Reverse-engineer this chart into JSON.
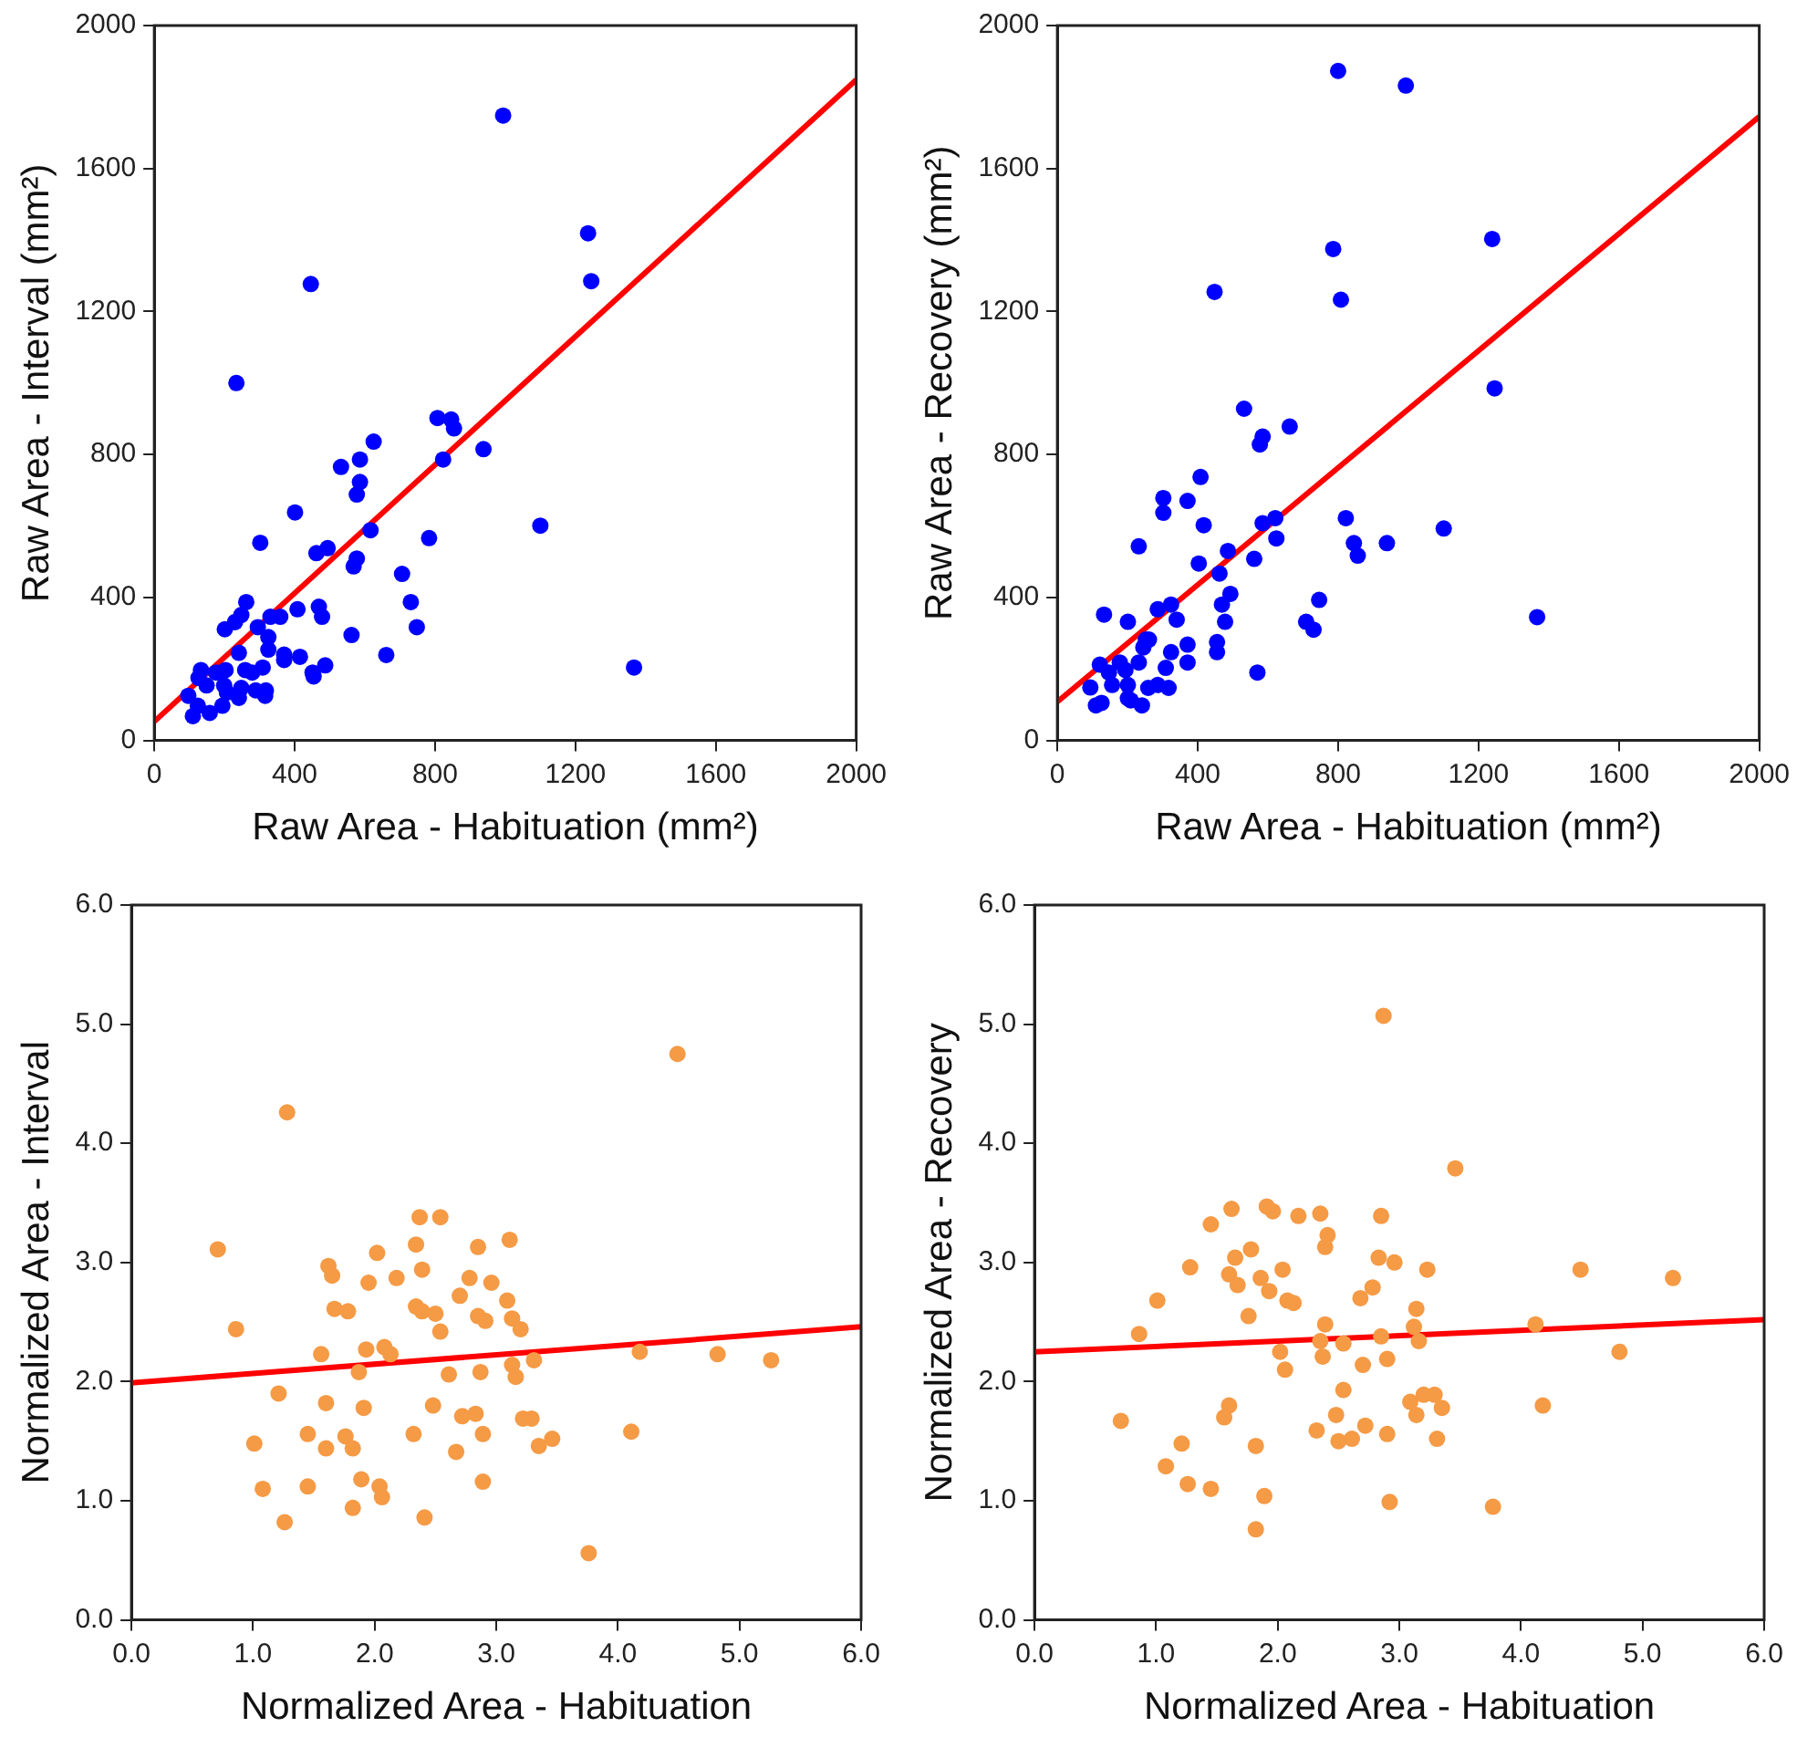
{
  "chart_data": [
    {
      "type": "scatter",
      "xlabel": "Raw Area - Habituation (mm²)",
      "ylabel": "Raw Area - Interval (mm²)",
      "xlim": [
        0,
        2000
      ],
      "ylim": [
        0,
        2000
      ],
      "xticks": [
        0,
        400,
        800,
        1200,
        1600,
        2000
      ],
      "yticks": [
        0,
        400,
        800,
        1200,
        1600,
        2000
      ],
      "marker": "circle",
      "grid": false,
      "series": [
        {
          "type": "scatter",
          "color": "#0000ff",
          "x": [
            994,
            1236,
            1245,
            446,
            234,
            807,
            846,
            854,
            625,
            938,
            586,
            823,
            532,
            586,
            577,
            401,
            616,
            1100,
            783,
            302,
            462,
            494,
            577,
            568,
            706,
            262,
            731,
            408,
            469,
            478,
            359,
            331,
            248,
            230,
            201,
            295,
            748,
            325,
            562,
            325,
            241,
            370,
            415,
            661,
            370,
            1367,
            487,
            451,
            454,
            259,
            279,
            309,
            133,
            126,
            176,
            203,
            149,
            199,
            248,
            207,
            289,
            318,
            316,
            241,
            97,
            124,
            194,
            158,
            110
          ],
          "values": [
            1748,
            1419,
            1285,
            1277,
            1000,
            902,
            898,
            873,
            836,
            815,
            786,
            786,
            765,
            723,
            688,
            638,
            588,
            601,
            566,
            553,
            524,
            538,
            509,
            487,
            466,
            387,
            387,
            367,
            374,
            346,
            346,
            346,
            351,
            331,
            311,
            317,
            317,
            289,
            295,
            254,
            245,
            240,
            234,
            239,
            225,
            204,
            210,
            190,
            179,
            197,
            190,
            204,
            197,
            175,
            190,
            197,
            154,
            154,
            147,
            134,
            140,
            140,
            125,
            119,
            125,
            97,
            97,
            77,
            68
          ]
        },
        {
          "type": "line",
          "color": "#ff0000",
          "marker": "none",
          "x": [
            0,
            2000
          ],
          "values": [
            53,
            1848
          ]
        }
      ]
    },
    {
      "type": "scatter",
      "xlabel": "Raw Area - Habituation (mm²)",
      "ylabel": "Raw Area - Recovery (mm²)",
      "xlim": [
        0,
        2000
      ],
      "ylim": [
        0,
        2000
      ],
      "xticks": [
        0,
        400,
        800,
        1200,
        1600,
        2000
      ],
      "yticks": [
        0,
        400,
        800,
        1200,
        1600,
        2000
      ],
      "marker": "circle",
      "grid": false,
      "series": [
        {
          "type": "scatter",
          "color": "#0000ff",
          "x": [
            800,
            993,
            1239,
            786,
            448,
            808,
            1246,
            532,
            662,
            585,
            577,
            408,
            302,
            302,
            371,
            417,
            822,
            1101,
            232,
            621,
            585,
            624,
            845,
            939,
            856,
            486,
            561,
            403,
            462,
            493,
            746,
            1367,
            469,
            286,
            324,
            133,
            201,
            340,
            478,
            709,
            730,
            252,
            261,
            245,
            371,
            455,
            455,
            178,
            232,
            371,
            324,
            309,
            570,
            121,
            147,
            194,
            156,
            201,
            94,
            286,
            259,
            317,
            201,
            209,
            110,
            126,
            241
          ],
          "values": [
            1873,
            1832,
            1403,
            1375,
            1255,
            1233,
            985,
            928,
            878,
            850,
            828,
            737,
            678,
            637,
            670,
            602,
            622,
            593,
            543,
            622,
            608,
            565,
            552,
            552,
            517,
            530,
            508,
            495,
            467,
            410,
            393,
            345,
            380,
            367,
            380,
            352,
            332,
            338,
            332,
            332,
            310,
            282,
            282,
            260,
            268,
            275,
            247,
            218,
            218,
            218,
            247,
            203,
            190,
            212,
            190,
            197,
            155,
            155,
            148,
            155,
            147,
            147,
            118,
            112,
            98,
            105,
            98
          ]
        },
        {
          "type": "line",
          "color": "#ff0000",
          "marker": "none",
          "x": [
            0,
            2000
          ],
          "values": [
            108,
            1745
          ]
        }
      ]
    },
    {
      "type": "scatter",
      "xlabel": "Normalized Area - Habituation",
      "ylabel": "Normalized Area - Interval",
      "xlim": [
        0,
        6
      ],
      "ylim": [
        0,
        6
      ],
      "xticks": [
        {
          "value": 0,
          "label": "0.0"
        },
        {
          "value": 1,
          "label": "1.0"
        },
        {
          "value": 2,
          "label": "2.0"
        },
        {
          "value": 3,
          "label": "3.0"
        },
        {
          "value": 4,
          "label": "4.0"
        },
        {
          "value": 5,
          "label": "5.0"
        },
        {
          "value": 6,
          "label": "6.0"
        }
      ],
      "yticks": [
        {
          "value": 0,
          "label": "0.0"
        },
        {
          "value": 1,
          "label": "1.0"
        },
        {
          "value": 2,
          "label": "2.0"
        },
        {
          "value": 3,
          "label": "3.0"
        },
        {
          "value": 4,
          "label": "4.0"
        },
        {
          "value": 5,
          "label": "5.0"
        },
        {
          "value": 6,
          "label": "6.0"
        }
      ],
      "marker": "circle",
      "grid": false,
      "series": [
        {
          "type": "scatter",
          "color": "#f59a45",
          "x": [
            4.49,
            1.28,
            0.71,
            2.37,
            2.54,
            3.11,
            2.34,
            2.85,
            2.02,
            1.62,
            1.65,
            2.39,
            2.18,
            2.78,
            1.95,
            2.96,
            2.7,
            3.09,
            2.34,
            2.39,
            2.5,
            1.67,
            1.78,
            2.85,
            2.91,
            3.13,
            3.2,
            0.86,
            2.54,
            2.08,
            1.93,
            2.13,
            1.56,
            4.18,
            4.82,
            5.26,
            3.13,
            3.31,
            1.87,
            2.61,
            2.87,
            3.16,
            1.21,
            1.6,
            1.91,
            2.48,
            2.72,
            2.83,
            3.22,
            3.29,
            1.45,
            1.76,
            2.32,
            2.89,
            4.11,
            3.46,
            3.35,
            1.01,
            1.6,
            1.82,
            2.67,
            1.08,
            1.45,
            1.89,
            2.04,
            2.06,
            2.89,
            1.82,
            2.41,
            1.26,
            3.76
          ],
          "values": [
            4.75,
            4.26,
            3.11,
            3.38,
            3.38,
            3.19,
            3.15,
            3.13,
            3.08,
            2.97,
            2.89,
            2.94,
            2.87,
            2.87,
            2.83,
            2.83,
            2.72,
            2.68,
            2.63,
            2.59,
            2.57,
            2.61,
            2.59,
            2.55,
            2.51,
            2.53,
            2.44,
            2.44,
            2.42,
            2.29,
            2.27,
            2.23,
            2.23,
            2.25,
            2.23,
            2.18,
            2.14,
            2.18,
            2.08,
            2.06,
            2.08,
            2.04,
            1.9,
            1.82,
            1.78,
            1.8,
            1.71,
            1.73,
            1.69,
            1.69,
            1.56,
            1.54,
            1.56,
            1.56,
            1.58,
            1.52,
            1.46,
            1.48,
            1.44,
            1.44,
            1.41,
            1.1,
            1.12,
            1.18,
            1.12,
            1.03,
            1.16,
            0.94,
            0.86,
            0.82,
            0.56
          ]
        },
        {
          "type": "line",
          "color": "#ff0000",
          "marker": "none",
          "x": [
            0,
            6
          ],
          "values": [
            1.99,
            2.46
          ]
        }
      ]
    },
    {
      "type": "scatter",
      "xlabel": "Normalized Area - Habituation",
      "ylabel": "Normalized Area - Recovery",
      "xlim": [
        0,
        6
      ],
      "ylim": [
        0,
        6
      ],
      "xticks": [
        {
          "value": 0,
          "label": "0.0"
        },
        {
          "value": 1,
          "label": "1.0"
        },
        {
          "value": 2,
          "label": "2.0"
        },
        {
          "value": 3,
          "label": "3.0"
        },
        {
          "value": 4,
          "label": "4.0"
        },
        {
          "value": 5,
          "label": "5.0"
        },
        {
          "value": 6,
          "label": "6.0"
        }
      ],
      "yticks": [
        {
          "value": 0,
          "label": "0.0"
        },
        {
          "value": 1,
          "label": "1.0"
        },
        {
          "value": 2,
          "label": "2.0"
        },
        {
          "value": 3,
          "label": "3.0"
        },
        {
          "value": 4,
          "label": "4.0"
        },
        {
          "value": 5,
          "label": "5.0"
        },
        {
          "value": 6,
          "label": "6.0"
        }
      ],
      "marker": "circle",
      "grid": false,
      "series": [
        {
          "type": "scatter",
          "color": "#f59a45",
          "x": [
            2.87,
            3.46,
            1.91,
            1.96,
            1.62,
            2.35,
            2.17,
            2.85,
            1.45,
            2.41,
            2.39,
            1.78,
            1.65,
            2.83,
            2.96,
            1.28,
            2.04,
            3.23,
            4.49,
            5.25,
            1.6,
            1.86,
            1.67,
            2.78,
            1.93,
            2.68,
            1.01,
            2.08,
            2.13,
            3.14,
            1.76,
            2.39,
            3.12,
            4.12,
            0.86,
            2.85,
            2.35,
            2.54,
            3.16,
            2.02,
            4.81,
            2.37,
            2.9,
            2.7,
            2.06,
            2.54,
            3.2,
            3.29,
            3.09,
            4.18,
            1.6,
            3.35,
            1.56,
            2.48,
            3.14,
            0.71,
            2.72,
            2.32,
            2.9,
            2.5,
            2.61,
            3.31,
            1.21,
            1.82,
            1.08,
            1.26,
            1.45,
            1.89,
            2.92,
            3.77,
            1.82
          ],
          "values": [
            5.07,
            3.79,
            3.47,
            3.43,
            3.45,
            3.41,
            3.39,
            3.39,
            3.32,
            3.23,
            3.13,
            3.11,
            3.04,
            3.04,
            3.0,
            2.96,
            2.94,
            2.94,
            2.94,
            2.87,
            2.9,
            2.87,
            2.81,
            2.79,
            2.76,
            2.7,
            2.68,
            2.68,
            2.66,
            2.61,
            2.55,
            2.48,
            2.46,
            2.48,
            2.4,
            2.38,
            2.34,
            2.32,
            2.34,
            2.25,
            2.25,
            2.21,
            2.19,
            2.14,
            2.1,
            1.93,
            1.89,
            1.89,
            1.83,
            1.8,
            1.8,
            1.78,
            1.7,
            1.72,
            1.72,
            1.67,
            1.63,
            1.59,
            1.56,
            1.5,
            1.52,
            1.52,
            1.48,
            1.46,
            1.29,
            1.14,
            1.1,
            1.04,
            0.99,
            0.95,
            0.76
          ]
        },
        {
          "type": "line",
          "color": "#ff0000",
          "marker": "none",
          "x": [
            0,
            6
          ],
          "values": [
            2.25,
            2.52
          ]
        }
      ]
    }
  ]
}
